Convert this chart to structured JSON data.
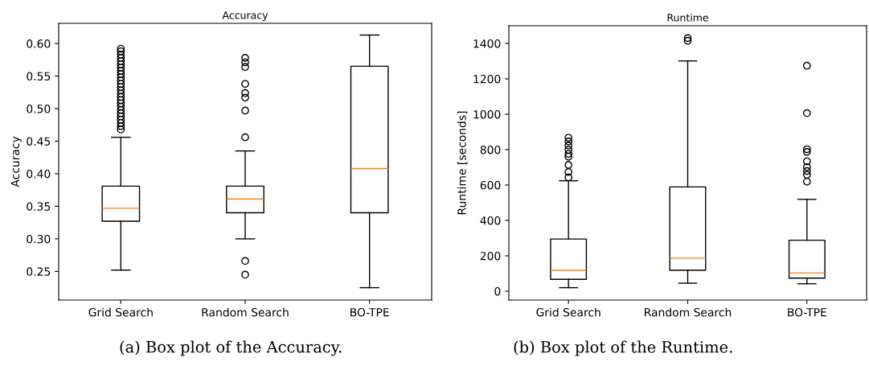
{
  "chart_data": [
    {
      "type": "box",
      "title": "Accuracy",
      "ylabel": "Accuracy",
      "categories": [
        "Grid Search",
        "Random Search",
        "BO-TPE"
      ],
      "ylim": [
        0.206,
        0.631
      ],
      "yticks": [
        0.25,
        {
          "value": 0.3,
          "label": "0.30"
        },
        0.35,
        {
          "value": 0.4,
          "label": "0.40"
        },
        0.45,
        {
          "value": 0.5,
          "label": "0.50"
        },
        0.55,
        {
          "value": 0.6,
          "label": "0.60"
        }
      ],
      "boxes": [
        {
          "low": 0.252,
          "q1": 0.327,
          "median": 0.347,
          "q3": 0.381,
          "high": 0.456,
          "outliers": [
            0.468,
            0.473,
            0.478,
            0.483,
            0.488,
            0.493,
            0.498,
            0.503,
            0.508,
            0.513,
            0.518,
            0.523,
            0.528,
            0.533,
            0.538,
            0.543,
            0.548,
            0.553,
            0.558,
            0.563,
            0.568,
            0.573,
            0.578,
            0.583,
            0.588,
            0.592
          ]
        },
        {
          "low": 0.3,
          "q1": 0.34,
          "median": 0.361,
          "q3": 0.381,
          "high": 0.435,
          "outliers": [
            0.245,
            0.266,
            0.456,
            0.497,
            0.517,
            0.524,
            0.538,
            0.564,
            0.571,
            0.578
          ]
        },
        {
          "low": 0.225,
          "q1": 0.34,
          "median": 0.408,
          "q3": 0.565,
          "high": 0.613
        }
      ],
      "annotations": [
        "(a) Box plot of the Accuracy."
      ]
    },
    {
      "type": "box",
      "title": "Runtime",
      "ylabel": "Runtime [seconds]",
      "categories": [
        "Grid Search",
        "Random Search",
        "BO-TPE"
      ],
      "ylim": [
        -50,
        1500
      ],
      "yticks": [
        0,
        200,
        400,
        600,
        800,
        1000,
        1200,
        1400
      ],
      "boxes": [
        {
          "low": 20,
          "q1": 67,
          "median": 118,
          "q3": 295,
          "high": 624,
          "outliers": [
            643,
            674,
            713,
            760,
            776,
            799,
            823,
            846,
            867
          ]
        },
        {
          "low": 45,
          "q1": 118,
          "median": 187,
          "q3": 589,
          "high": 1301,
          "outliers": [
            1415,
            1430
          ]
        },
        {
          "low": 42,
          "q1": 74,
          "median": 103,
          "q3": 288,
          "high": 519,
          "outliers": [
            619,
            658,
            679,
            701,
            734,
            787,
            802,
            1006,
            1274
          ]
        }
      ],
      "annotations": [
        "(b) Box plot of the Runtime."
      ]
    }
  ]
}
